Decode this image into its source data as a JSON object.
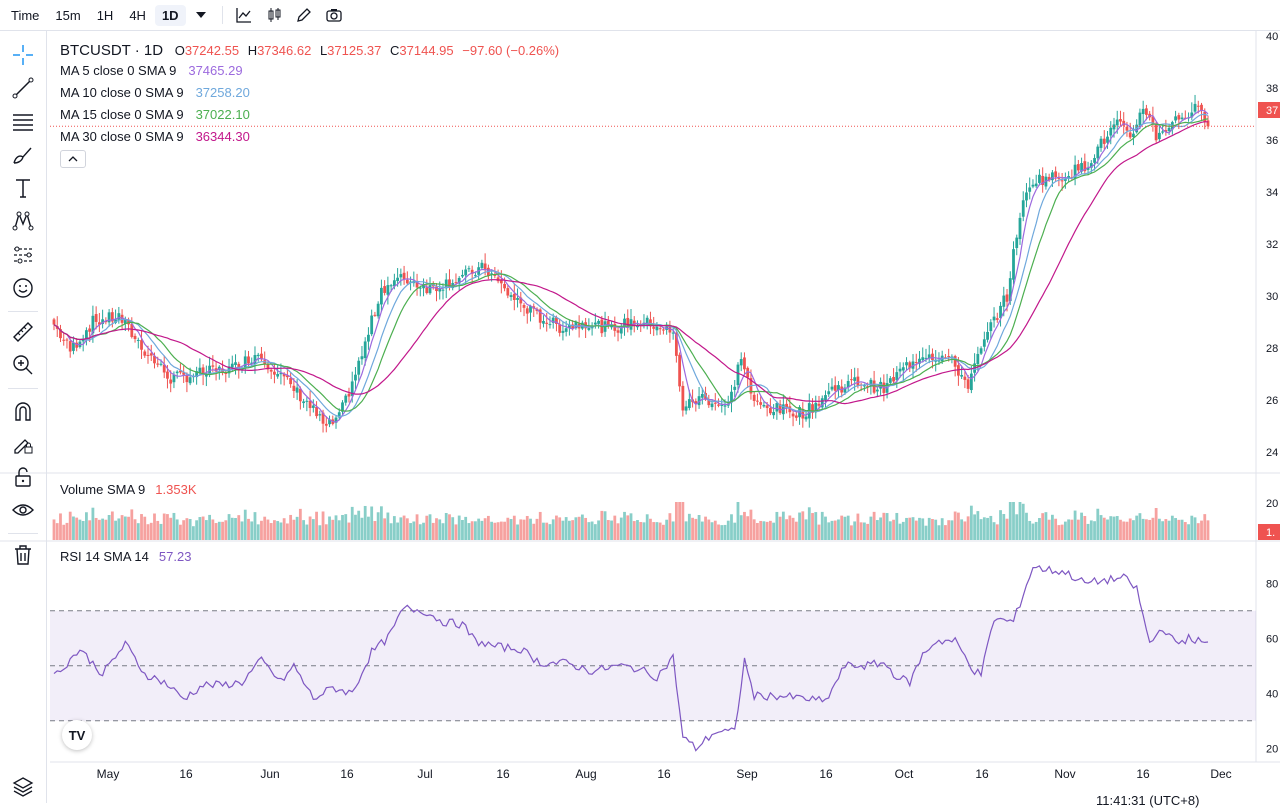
{
  "toolbar": {
    "time_label": "Time",
    "intervals": [
      "15m",
      "1H",
      "4H",
      "1D"
    ],
    "active_interval": "1D"
  },
  "legend": {
    "symbol": "BTCUSDT · 1D",
    "open_label": "O",
    "open": "37242.55",
    "high_label": "H",
    "high": "37346.62",
    "low_label": "L",
    "low": "37125.37",
    "close_label": "C",
    "close": "37144.95",
    "change": "−97.60 (−0.26%)",
    "ma": [
      {
        "label": "MA 5 close 0 SMA 9",
        "value": "37465.29",
        "color": "#9c6ade"
      },
      {
        "label": "MA 10 close 0 SMA 9",
        "value": "37258.20",
        "color": "#6fa8dc"
      },
      {
        "label": "MA 15 close 0 SMA 9",
        "value": "37022.10",
        "color": "#4caf50"
      },
      {
        "label": "MA 30 close 0 SMA 9",
        "value": "36344.30",
        "color": "#c2188b"
      }
    ],
    "volume_label": "Volume SMA 9",
    "volume_value": "1.353K",
    "rsi_label": "RSI 14 SMA 14",
    "rsi_value": "57.23"
  },
  "colors": {
    "up": "#26a69a",
    "down": "#ef5350",
    "rsi": "#7e57c2",
    "ma5": "#9c6ade",
    "ma10": "#6fa8dc",
    "ma15": "#4caf50",
    "ma30": "#c2188b"
  },
  "price_axis_labels": [
    "40",
    "38",
    "37",
    "36",
    "34",
    "32",
    "30",
    "28",
    "26",
    "24"
  ],
  "volume_axis_labels": [
    "20",
    "1."
  ],
  "rsi_axis_labels": [
    "80",
    "60",
    "40",
    "20"
  ],
  "time_axis_labels": [
    "May",
    "16",
    "Jun",
    "16",
    "Jul",
    "16",
    "Aug",
    "16",
    "Sep",
    "16",
    "Oct",
    "16",
    "Nov",
    "16",
    "Dec"
  ],
  "clock_text": "11:41:31 (UTC+8)",
  "logo_text": "TV",
  "chart_data": {
    "type": "candlestick",
    "title": "BTCUSDT 1D",
    "price_range_thousands": [
      23.5,
      40.5
    ],
    "rsi_range": [
      15,
      95
    ],
    "rsi_levels": [
      70,
      50,
      30
    ],
    "price_profile": [
      [
        0,
        29.2
      ],
      [
        5,
        28.2
      ],
      [
        12,
        29.3
      ],
      [
        20,
        29.5
      ],
      [
        28,
        28.2
      ],
      [
        36,
        27.1
      ],
      [
        45,
        27.3
      ],
      [
        55,
        27.5
      ],
      [
        63,
        28.1
      ],
      [
        70,
        27.2
      ],
      [
        78,
        26.2
      ],
      [
        84,
        25.2
      ],
      [
        88,
        25.6
      ],
      [
        95,
        28.0
      ],
      [
        101,
        30.6
      ],
      [
        108,
        31.0
      ],
      [
        116,
        30.6
      ],
      [
        125,
        31.0
      ],
      [
        133,
        31.4
      ],
      [
        140,
        30.4
      ],
      [
        148,
        29.6
      ],
      [
        156,
        29.1
      ],
      [
        164,
        29.3
      ],
      [
        172,
        29.0
      ],
      [
        178,
        29.3
      ],
      [
        186,
        29.2
      ],
      [
        191,
        28.8
      ],
      [
        194,
        26.0
      ],
      [
        200,
        26.4
      ],
      [
        208,
        26.0
      ],
      [
        212,
        28.0
      ],
      [
        216,
        26.1
      ],
      [
        224,
        25.9
      ],
      [
        232,
        25.8
      ],
      [
        240,
        26.7
      ],
      [
        248,
        27.0
      ],
      [
        256,
        26.7
      ],
      [
        262,
        27.5
      ],
      [
        268,
        28.1
      ],
      [
        276,
        27.9
      ],
      [
        282,
        26.9
      ],
      [
        286,
        28.2
      ],
      [
        290,
        29.4
      ],
      [
        294,
        30.3
      ],
      [
        298,
        33.5
      ],
      [
        302,
        34.8
      ],
      [
        310,
        34.9
      ],
      [
        318,
        35.3
      ],
      [
        322,
        36.0
      ],
      [
        328,
        37.0
      ],
      [
        332,
        36.3
      ],
      [
        336,
        37.7
      ],
      [
        340,
        36.5
      ],
      [
        346,
        37.1
      ],
      [
        352,
        37.5
      ],
      [
        356,
        37.1
      ]
    ],
    "rsi_profile": [
      [
        0,
        46
      ],
      [
        8,
        56
      ],
      [
        15,
        47
      ],
      [
        22,
        58
      ],
      [
        28,
        47
      ],
      [
        34,
        44
      ],
      [
        40,
        38
      ],
      [
        46,
        43
      ],
      [
        52,
        43
      ],
      [
        58,
        44
      ],
      [
        64,
        52
      ],
      [
        70,
        44
      ],
      [
        74,
        50
      ],
      [
        80,
        38
      ],
      [
        86,
        42
      ],
      [
        92,
        40
      ],
      [
        98,
        55
      ],
      [
        103,
        60
      ],
      [
        108,
        71
      ],
      [
        114,
        70
      ],
      [
        120,
        66
      ],
      [
        126,
        65
      ],
      [
        130,
        59
      ],
      [
        136,
        57
      ],
      [
        144,
        56
      ],
      [
        150,
        51
      ],
      [
        158,
        51
      ],
      [
        166,
        48
      ],
      [
        174,
        50
      ],
      [
        180,
        49
      ],
      [
        186,
        46
      ],
      [
        191,
        53
      ],
      [
        194,
        24
      ],
      [
        198,
        20
      ],
      [
        204,
        26
      ],
      [
        210,
        26
      ],
      [
        213,
        52
      ],
      [
        216,
        39
      ],
      [
        224,
        39
      ],
      [
        232,
        38
      ],
      [
        238,
        37
      ],
      [
        244,
        50
      ],
      [
        250,
        50
      ],
      [
        256,
        51
      ],
      [
        260,
        46
      ],
      [
        264,
        44
      ],
      [
        268,
        54
      ],
      [
        272,
        59
      ],
      [
        278,
        59
      ],
      [
        284,
        48
      ],
      [
        286,
        47
      ],
      [
        290,
        67
      ],
      [
        296,
        66
      ],
      [
        302,
        86
      ],
      [
        306,
        85
      ],
      [
        312,
        84
      ],
      [
        318,
        80
      ],
      [
        324,
        81
      ],
      [
        330,
        82
      ],
      [
        334,
        78
      ],
      [
        336,
        68
      ],
      [
        338,
        58
      ],
      [
        342,
        64
      ],
      [
        346,
        58
      ],
      [
        350,
        60
      ],
      [
        356,
        58
      ]
    ]
  }
}
